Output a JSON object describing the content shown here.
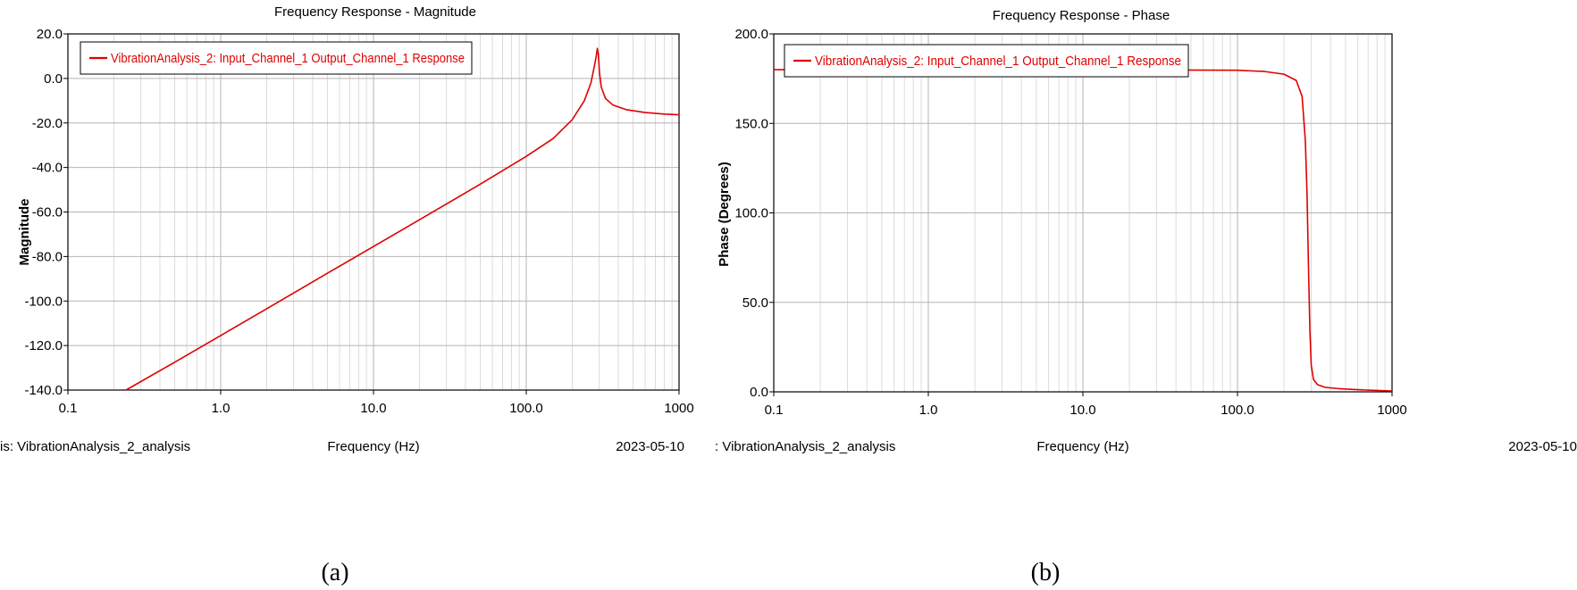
{
  "chart_data": [
    {
      "id": "a",
      "type": "line",
      "title": "Frequency Response - Magnitude",
      "xlabel": "Frequency (Hz)",
      "ylabel": "Magnitude",
      "x_scale": "log",
      "xlim": [
        0.1,
        1000
      ],
      "ylim": [
        -140,
        20
      ],
      "x_ticks": [
        "0.1",
        "1.0",
        "10.0",
        "100.0",
        "1000"
      ],
      "y_ticks": [
        "20.0",
        "0.0",
        "-20.0",
        "-40.0",
        "-60.0",
        "-80.0",
        "-100.0",
        "-120.0",
        "-140.0"
      ],
      "grid": true,
      "legend_position": "top-left",
      "footer_left": "is:  VibrationAnalysis_2_analysis",
      "footer_right": "2023-05-10",
      "caption": "(a)",
      "series": [
        {
          "name": "VibrationAnalysis_2: Input_Channel_1 Output_Channel_1 Response",
          "color": "#e00000",
          "points": [
            [
              0.24,
              -140
            ],
            [
              0.5,
              -127.5
            ],
            [
              1,
              -115.5
            ],
            [
              2,
              -103.5
            ],
            [
              5,
              -87.5
            ],
            [
              10,
              -75.5
            ],
            [
              20,
              -63.5
            ],
            [
              50,
              -47.5
            ],
            [
              100,
              -35
            ],
            [
              150,
              -27
            ],
            [
              200,
              -18.5
            ],
            [
              240,
              -10
            ],
            [
              265,
              -2
            ],
            [
              280,
              6
            ],
            [
              287,
              10
            ],
            [
              292,
              13.5
            ],
            [
              296,
              11
            ],
            [
              302,
              2
            ],
            [
              310,
              -4
            ],
            [
              330,
              -9
            ],
            [
              370,
              -12
            ],
            [
              450,
              -14
            ],
            [
              600,
              -15.3
            ],
            [
              800,
              -16
            ],
            [
              1000,
              -16.3
            ]
          ]
        }
      ]
    },
    {
      "id": "b",
      "type": "line",
      "title": "Frequency Response - Phase",
      "xlabel": "Frequency (Hz)",
      "ylabel": "Phase (Degrees)",
      "x_scale": "log",
      "xlim": [
        0.1,
        1000
      ],
      "ylim": [
        0,
        200
      ],
      "x_ticks": [
        "0.1",
        "1.0",
        "10.0",
        "100.0",
        "1000"
      ],
      "y_ticks": [
        "200.0",
        "150.0",
        "100.0",
        "50.0",
        "0.0"
      ],
      "grid": true,
      "legend_position": "top-left",
      "footer_left": ":  VibrationAnalysis_2_analysis",
      "footer_right": "2023-05-10",
      "caption": "(b)",
      "series": [
        {
          "name": "VibrationAnalysis_2: Input_Channel_1 Output_Channel_1 Response",
          "color": "#e00000",
          "points": [
            [
              0.1,
              180
            ],
            [
              1,
              180
            ],
            [
              10,
              180
            ],
            [
              100,
              179.7
            ],
            [
              150,
              179
            ],
            [
              200,
              177.5
            ],
            [
              240,
              174
            ],
            [
              262,
              165
            ],
            [
              275,
              140
            ],
            [
              282,
              110
            ],
            [
              288,
              70
            ],
            [
              294,
              35
            ],
            [
              300,
              15
            ],
            [
              310,
              7
            ],
            [
              330,
              4
            ],
            [
              370,
              2.5
            ],
            [
              450,
              1.8
            ],
            [
              600,
              1.2
            ],
            [
              800,
              0.8
            ],
            [
              1000,
              0.5
            ]
          ]
        }
      ]
    }
  ]
}
